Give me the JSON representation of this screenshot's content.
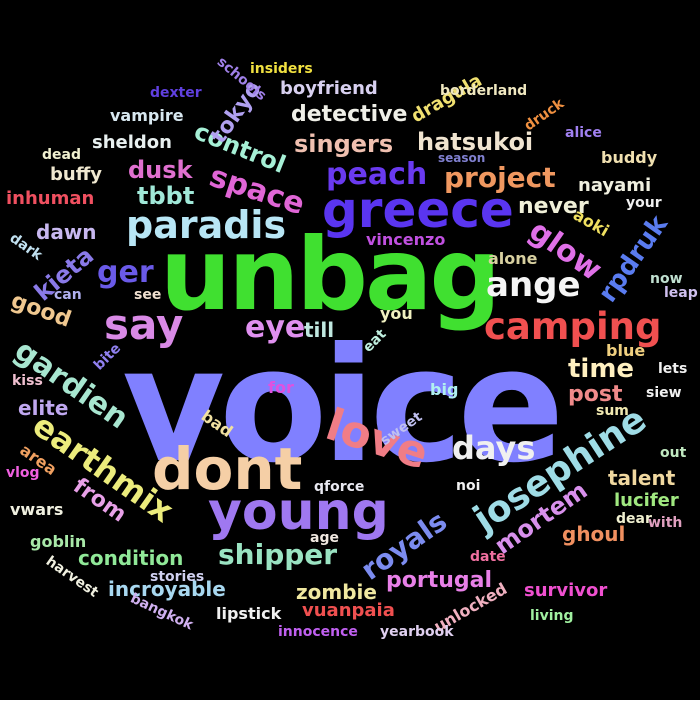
{
  "words": [
    {
      "text": "voice",
      "color": "#8080ff"
    },
    {
      "text": "unbag",
      "color": "#40e030"
    },
    {
      "text": "dont",
      "color": "#f5cfa6"
    },
    {
      "text": "young",
      "color": "#9f78f0"
    },
    {
      "text": "greece",
      "color": "#5a35f0"
    },
    {
      "text": "say",
      "color": "#d98ae6"
    },
    {
      "text": "love",
      "color": "#f07d86"
    },
    {
      "text": "paradis",
      "color": "#b8e6f5"
    },
    {
      "text": "camping",
      "color": "#f05050"
    },
    {
      "text": "josephine",
      "color": "#9fdce6"
    },
    {
      "text": "earthmix",
      "color": "#ecec7c"
    },
    {
      "text": "ange",
      "color": "#f5f5f5"
    },
    {
      "text": "gardien",
      "color": "#a8e6d0"
    },
    {
      "text": "space",
      "color": "#e066d6"
    },
    {
      "text": "eye",
      "color": "#e090f0"
    },
    {
      "text": "peach",
      "color": "#6a3af0"
    },
    {
      "text": "days",
      "color": "#f0f0f0"
    },
    {
      "text": "royals",
      "color": "#7c8cf0"
    },
    {
      "text": "glow",
      "color": "#e070e8"
    },
    {
      "text": "project",
      "color": "#f09860"
    },
    {
      "text": "ger",
      "color": "#6a5ae8"
    },
    {
      "text": "shipper",
      "color": "#9ae3c2"
    },
    {
      "text": "singers",
      "color": "#f0c0b0"
    },
    {
      "text": "hatsukoi",
      "color": "#f0e4d0"
    },
    {
      "text": "control",
      "color": "#a6f0d6"
    },
    {
      "text": "mortem",
      "color": "#d890ec"
    },
    {
      "text": "time",
      "color": "#fff0c0"
    },
    {
      "text": "rpdruk",
      "color": "#5a7cf0"
    },
    {
      "text": "tbbt",
      "color": "#a0e8d8"
    },
    {
      "text": "dusk",
      "color": "#e070d0"
    },
    {
      "text": "detective",
      "color": "#f0f0e8"
    },
    {
      "text": "kieta",
      "color": "#8a7ae8"
    },
    {
      "text": "good",
      "color": "#f0c890"
    },
    {
      "text": "from",
      "color": "#e8a0e8"
    },
    {
      "text": "portugal",
      "color": "#e880e8"
    },
    {
      "text": "post",
      "color": "#f08a8a"
    },
    {
      "text": "never",
      "color": "#f0f0d8"
    },
    {
      "text": "tokyo",
      "color": "#b0a0f0"
    },
    {
      "text": "talent",
      "color": "#f0d8a0"
    },
    {
      "text": "condition",
      "color": "#90e898"
    },
    {
      "text": "zombie",
      "color": "#f0e8a0"
    },
    {
      "text": "incroyable",
      "color": "#a8d8f0"
    },
    {
      "text": "ghoul",
      "color": "#f09060"
    },
    {
      "text": "elite",
      "color": "#c0a8f0"
    },
    {
      "text": "till",
      "color": "#c0e8e0"
    },
    {
      "text": "dawn",
      "color": "#c8b8f0"
    },
    {
      "text": "survivor",
      "color": "#f050d0"
    },
    {
      "text": "vuanpaia",
      "color": "#f05050"
    },
    {
      "text": "nayami",
      "color": "#f0f0e0"
    },
    {
      "text": "boyfriend",
      "color": "#d8d0f0"
    },
    {
      "text": "inhuman",
      "color": "#f05060"
    },
    {
      "text": "dragula",
      "color": "#f0e070"
    },
    {
      "text": "sheldon",
      "color": "#e8f0f0"
    },
    {
      "text": "vampire",
      "color": "#d8e8f0"
    },
    {
      "text": "buffy",
      "color": "#f0e8d0"
    },
    {
      "text": "lucifer",
      "color": "#a0e880"
    },
    {
      "text": "vincenzo",
      "color": "#c050e0"
    },
    {
      "text": "buddy",
      "color": "#f0e0b0"
    },
    {
      "text": "aoki",
      "color": "#f0e060"
    },
    {
      "text": "alone",
      "color": "#d8d0a0"
    },
    {
      "text": "area",
      "color": "#f0a060"
    },
    {
      "text": "vwars",
      "color": "#f0f0e0"
    },
    {
      "text": "unlocked",
      "color": "#f0b0c0"
    },
    {
      "text": "lipstick",
      "color": "#f0f0f0"
    },
    {
      "text": "goblin",
      "color": "#a8e8a8"
    },
    {
      "text": "borderland",
      "color": "#f0e8c0"
    },
    {
      "text": "dexter",
      "color": "#6040e0"
    },
    {
      "text": "schools",
      "color": "#a080e8"
    },
    {
      "text": "insiders",
      "color": "#f0e040"
    },
    {
      "text": "druck",
      "color": "#f09040"
    },
    {
      "text": "alice",
      "color": "#a080f0"
    },
    {
      "text": "dead",
      "color": "#f0f0d0"
    },
    {
      "text": "season",
      "color": "#8080d0"
    },
    {
      "text": "your",
      "color": "#f0f0f0"
    },
    {
      "text": "dark",
      "color": "#c0e0f0"
    },
    {
      "text": "can",
      "color": "#b0b0f0"
    },
    {
      "text": "now",
      "color": "#c0e0d0"
    },
    {
      "text": "leap",
      "color": "#d0c0f0"
    },
    {
      "text": "see",
      "color": "#f0e0d0"
    },
    {
      "text": "you",
      "color": "#f0f0c0"
    },
    {
      "text": "eat",
      "color": "#c0f0e0"
    },
    {
      "text": "blue",
      "color": "#f0d080"
    },
    {
      "text": "lets",
      "color": "#f0f0f0"
    },
    {
      "text": "bite",
      "color": "#9080f0"
    },
    {
      "text": "kiss",
      "color": "#f0c0d0"
    },
    {
      "text": "for",
      "color": "#e050e0"
    },
    {
      "text": "big",
      "color": "#b0f0f0"
    },
    {
      "text": "siew",
      "color": "#f0f0f0"
    },
    {
      "text": "sum",
      "color": "#f0e8b0"
    },
    {
      "text": "bad",
      "color": "#f0e0a0"
    },
    {
      "text": "sweet",
      "color": "#c0c0f0"
    },
    {
      "text": "vlog",
      "color": "#f060e0"
    },
    {
      "text": "out",
      "color": "#c0e8c0"
    },
    {
      "text": "noi",
      "color": "#f0f0f0"
    },
    {
      "text": "qforce",
      "color": "#e8e8f0"
    },
    {
      "text": "dear",
      "color": "#f0f0d0"
    },
    {
      "text": "with",
      "color": "#e0a0c0"
    },
    {
      "text": "age",
      "color": "#f0e8e0"
    },
    {
      "text": "date",
      "color": "#f070a0"
    },
    {
      "text": "harvest",
      "color": "#f0f0e0"
    },
    {
      "text": "stories",
      "color": "#d0d0f0"
    },
    {
      "text": "bangkok",
      "color": "#d0b0f0"
    },
    {
      "text": "living",
      "color": "#a0f0a0"
    },
    {
      "text": "innocence",
      "color": "#c060f0"
    },
    {
      "text": "yearbook",
      "color": "#e0d0f0"
    }
  ]
}
